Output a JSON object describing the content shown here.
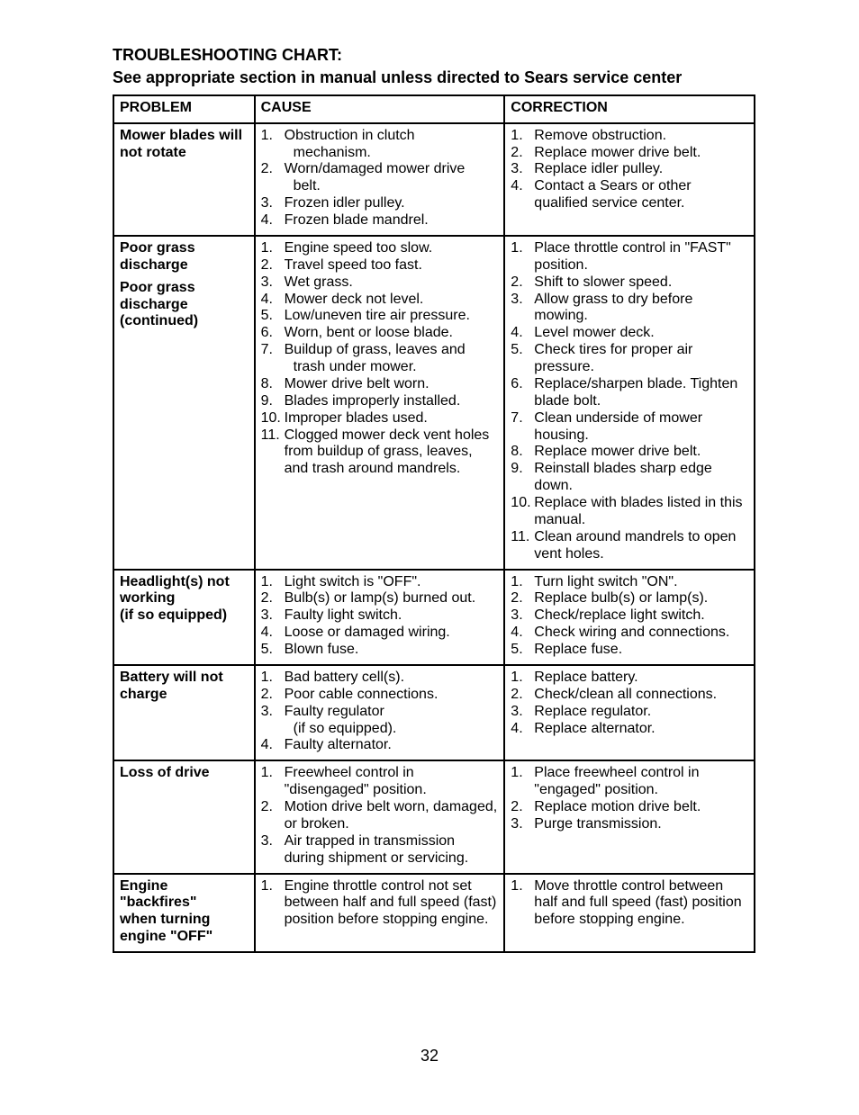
{
  "page": {
    "title": "TROUBLESHOOTING CHART:",
    "subtitle": "See appropriate section in manual unless directed to Sears service center",
    "page_number": "32"
  },
  "table": {
    "headers": {
      "problem": "PROBLEM",
      "cause": "CAUSE",
      "correction": "CORRECTION"
    },
    "rows": [
      {
        "problem_lines": [
          "Mower blades will",
          "not rotate"
        ],
        "causes": [
          {
            "text": "Obstruction in clutch",
            "sub": "mechanism."
          },
          {
            "text": "Worn/damaged mower drive",
            "sub": "belt."
          },
          {
            "text": "Frozen idler pulley."
          },
          {
            "text": "Frozen blade mandrel."
          }
        ],
        "corrections": [
          {
            "text": "Remove obstruction."
          },
          {
            "text": "Replace mower drive belt."
          },
          {
            "text": "Replace idler pulley."
          },
          {
            "text": "Contact a Sears or other qualified service center."
          }
        ]
      },
      {
        "problem_groups": [
          [
            "Poor grass",
            "discharge"
          ],
          [
            "Poor grass",
            "discharge",
            "(continued)"
          ]
        ],
        "causes": [
          {
            "text": "Engine speed too slow."
          },
          {
            "text": "Travel speed too fast."
          },
          {
            "text": "Wet grass."
          },
          {
            "text": "Mower deck not level."
          },
          {
            "text": "Low/uneven tire air pressure."
          },
          {
            "text": "Worn, bent or loose blade."
          },
          {
            "text": "Buildup of grass, leaves and",
            "sub": "trash under mower."
          },
          {
            "text": "Mower drive belt worn."
          },
          {
            "text": "Blades improperly installed."
          },
          {
            "text": "Improper blades used."
          },
          {
            "text": "Clogged mower deck vent holes from buildup of grass, leaves, and trash around mandrels."
          }
        ],
        "corrections": [
          {
            "text": "Place throttle control in \"FAST\" position."
          },
          {
            "text": "Shift to slower speed."
          },
          {
            "text": "Allow grass to dry before mowing."
          },
          {
            "text": "Level mower deck."
          },
          {
            "text": "Check tires for proper air pressure."
          },
          {
            "text": "Replace/sharpen blade. Tighten blade bolt."
          },
          {
            "text": "Clean underside of mower housing."
          },
          {
            "text": "Replace mower drive belt."
          },
          {
            "text": "Reinstall blades sharp edge down."
          },
          {
            "text": "Replace with blades listed in this manual."
          },
          {
            "text": "Clean around mandrels to open vent holes."
          }
        ]
      },
      {
        "problem_lines": [
          "Headlight(s) not",
          "working",
          "(if so equipped)"
        ],
        "causes": [
          {
            "text": "Light switch is \"OFF\"."
          },
          {
            "text": "Bulb(s) or lamp(s) burned out."
          },
          {
            "text": "Faulty light switch."
          },
          {
            "text": "Loose or damaged wiring."
          },
          {
            "text": "Blown fuse."
          }
        ],
        "corrections": [
          {
            "text": "Turn light switch \"ON\"."
          },
          {
            "text": "Replace bulb(s) or lamp(s)."
          },
          {
            "text": "Check/replace light switch."
          },
          {
            "text": "Check wiring and connections."
          },
          {
            "text": "Replace fuse."
          }
        ]
      },
      {
        "problem_lines": [
          "Battery will not",
          "charge"
        ],
        "causes": [
          {
            "text": "Bad battery cell(s)."
          },
          {
            "text": "Poor cable connections."
          },
          {
            "text": "Faulty regulator",
            "sub": "(if so equipped)."
          },
          {
            "text": "Faulty alternator."
          }
        ],
        "corrections": [
          {
            "text": "Replace battery."
          },
          {
            "text": "Check/clean all connections."
          },
          {
            "text": "Replace regulator."
          },
          {
            "text": "Replace alternator."
          }
        ]
      },
      {
        "problem_lines": [
          "Loss of drive"
        ],
        "causes": [
          {
            "text": "Freewheel control in \"disengaged\" position."
          },
          {
            "text": "Motion drive belt worn, damaged, or broken."
          },
          {
            "text": "Air trapped in transmission during shipment or servicing."
          }
        ],
        "corrections": [
          {
            "text": "Place freewheel control in \"engaged\" position."
          },
          {
            "text": "Replace motion drive belt."
          },
          {
            "text": "Purge transmission."
          }
        ]
      },
      {
        "problem_lines": [
          "Engine \"backfires\"",
          "when turning",
          "engine \"OFF\""
        ],
        "causes": [
          {
            "text": "Engine throttle control not set between half and full speed (fast) position before stopping engine."
          }
        ],
        "corrections": [
          {
            "text": "Move throttle control between half and full speed (fast) position before stopping engine."
          }
        ]
      }
    ]
  }
}
